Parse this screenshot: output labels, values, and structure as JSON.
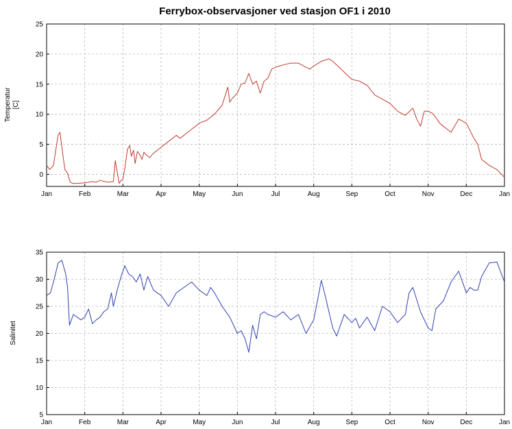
{
  "chart_data": [
    {
      "type": "line",
      "title": "Ferrybox-observasjoner ved stasjon OF1 i 2010",
      "xlabel": "",
      "ylabel": "Temperatur [C]",
      "ylabel_lines": [
        "Temperatur",
        "[C]"
      ],
      "x_ticks": [
        "Jan",
        "Feb",
        "Mar",
        "Apr",
        "May",
        "Jun",
        "Jul",
        "Aug",
        "Sep",
        "Oct",
        "Nov",
        "Dec",
        "Jan"
      ],
      "xlim": [
        0,
        12
      ],
      "ylim": [
        -2,
        25
      ],
      "y_ticks": [
        0,
        5,
        10,
        15,
        20,
        25
      ],
      "grid": true,
      "color": "#c0392b",
      "series": [
        {
          "x": [
            0,
            0.08,
            0.18,
            0.3,
            0.35,
            0.42,
            0.48,
            0.55,
            0.62,
            0.68,
            0.8,
            1.0,
            1.2,
            1.3,
            1.4,
            1.6,
            1.75,
            1.8,
            1.9,
            1.95,
            2.0,
            2.05,
            2.12,
            2.18,
            2.22,
            2.28,
            2.32,
            2.38,
            2.42,
            2.5,
            2.55,
            2.62,
            2.7,
            2.8,
            3.0,
            3.2,
            3.4,
            3.5,
            3.7,
            4.0,
            4.2,
            4.4,
            4.6,
            4.75,
            4.8,
            4.85,
            5.0,
            5.1,
            5.2,
            5.3,
            5.4,
            5.5,
            5.6,
            5.7,
            5.8,
            5.9,
            6.0,
            6.1,
            6.2,
            6.4,
            6.6,
            6.8,
            6.9,
            7.0,
            7.2,
            7.4,
            7.5,
            7.6,
            7.8,
            8.0,
            8.2,
            8.4,
            8.6,
            8.8,
            9.0,
            9.2,
            9.4,
            9.6,
            9.7,
            9.8,
            9.9,
            10.0,
            10.1,
            10.2,
            10.3,
            10.4,
            10.5,
            10.6,
            10.8,
            11.0,
            11.2,
            11.3,
            11.4,
            11.6,
            11.8,
            12.0
          ],
          "y": [
            1.5,
            0.8,
            1.5,
            6.5,
            7.0,
            3.5,
            0.8,
            0.2,
            -1.3,
            -1.5,
            -1.5,
            -1.4,
            -1.2,
            -1.3,
            -1.0,
            -1.3,
            -1.2,
            2.3,
            -1.5,
            -1.0,
            -0.8,
            1.0,
            4.2,
            4.8,
            3.0,
            4.0,
            1.8,
            3.8,
            3.5,
            2.5,
            3.7,
            3.2,
            2.8,
            3.5,
            4.5,
            5.5,
            6.5,
            6.0,
            7.0,
            8.5,
            9.0,
            10.0,
            11.5,
            14.5,
            12.0,
            12.5,
            13.5,
            15.0,
            15.2,
            16.8,
            15.0,
            15.5,
            13.5,
            15.5,
            16.0,
            17.5,
            17.8,
            18.0,
            18.2,
            18.5,
            18.5,
            17.8,
            17.5,
            18.0,
            18.8,
            19.2,
            18.8,
            18.2,
            17.0,
            15.8,
            15.5,
            14.8,
            13.2,
            12.5,
            11.8,
            10.5,
            9.8,
            11.0,
            9.2,
            8.0,
            10.5,
            10.5,
            10.2,
            9.5,
            8.5,
            8.0,
            7.5,
            7.0,
            9.2,
            8.5,
            6.0,
            5.0,
            2.5,
            1.5,
            0.8,
            -0.5
          ]
        }
      ]
    },
    {
      "type": "line",
      "title": "",
      "xlabel": "",
      "ylabel": "Salinitet",
      "x_ticks": [
        "Jan",
        "Feb",
        "Mar",
        "Apr",
        "May",
        "Jun",
        "Jul",
        "Aug",
        "Sep",
        "Oct",
        "Nov",
        "Dec",
        "Jan"
      ],
      "xlim": [
        0,
        12
      ],
      "ylim": [
        5,
        35
      ],
      "y_ticks": [
        5,
        10,
        15,
        20,
        25,
        30,
        35
      ],
      "grid": true,
      "color": "#2e3fb0",
      "series": [
        {
          "x": [
            0,
            0.1,
            0.2,
            0.3,
            0.4,
            0.5,
            0.55,
            0.6,
            0.7,
            0.8,
            0.9,
            1.0,
            1.1,
            1.2,
            1.3,
            1.4,
            1.5,
            1.6,
            1.7,
            1.75,
            1.85,
            1.95,
            2.05,
            2.15,
            2.25,
            2.35,
            2.45,
            2.55,
            2.65,
            2.8,
            3.0,
            3.2,
            3.4,
            3.6,
            3.8,
            4.0,
            4.2,
            4.3,
            4.4,
            4.6,
            4.8,
            5.0,
            5.1,
            5.2,
            5.3,
            5.4,
            5.5,
            5.6,
            5.7,
            5.8,
            6.0,
            6.2,
            6.4,
            6.6,
            6.8,
            7.0,
            7.1,
            7.2,
            7.3,
            7.4,
            7.5,
            7.6,
            7.8,
            8.0,
            8.1,
            8.2,
            8.4,
            8.6,
            8.8,
            9.0,
            9.2,
            9.4,
            9.5,
            9.6,
            9.8,
            10.0,
            10.1,
            10.2,
            10.4,
            10.6,
            10.8,
            11.0,
            11.1,
            11.2,
            11.3,
            11.4,
            11.6,
            11.8,
            12.0
          ],
          "y": [
            27.0,
            27.5,
            30.0,
            33.0,
            33.5,
            31.0,
            28.5,
            21.5,
            23.5,
            23.0,
            22.5,
            23.0,
            24.5,
            21.8,
            22.5,
            23.0,
            24.0,
            24.5,
            27.5,
            25.0,
            28.0,
            30.5,
            32.5,
            31.0,
            30.5,
            29.5,
            31.0,
            28.0,
            30.5,
            28.0,
            27.0,
            25.0,
            27.5,
            28.5,
            29.5,
            28.0,
            27.0,
            28.5,
            27.5,
            25.0,
            23.0,
            20.0,
            20.5,
            19.0,
            16.5,
            21.5,
            19.0,
            23.5,
            24.0,
            23.5,
            23.0,
            24.0,
            22.5,
            23.5,
            20.0,
            22.5,
            26.0,
            29.8,
            27.0,
            24.0,
            21.0,
            19.5,
            23.5,
            22.0,
            22.8,
            21.0,
            23.0,
            20.5,
            25.0,
            24.0,
            22.0,
            23.5,
            27.5,
            28.5,
            24.0,
            21.0,
            20.5,
            24.5,
            26.0,
            29.5,
            31.5,
            27.5,
            28.5,
            28.0,
            28.0,
            30.5,
            33.0,
            33.2,
            29.5
          ]
        }
      ]
    }
  ]
}
